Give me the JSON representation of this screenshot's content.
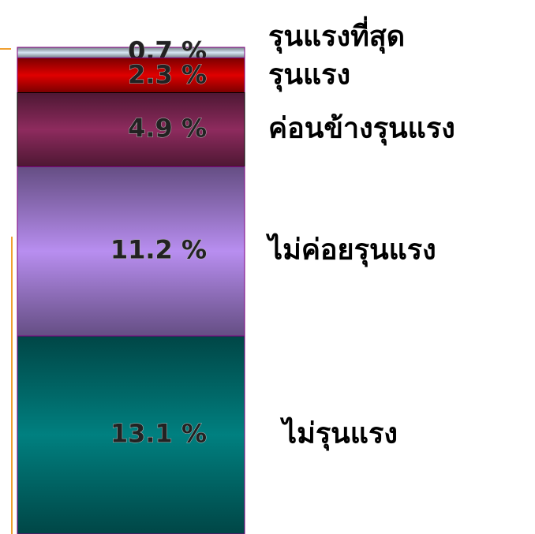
{
  "chart_data": {
    "type": "stacked_bar",
    "categories": [
      "รุนแรงที่สุด",
      "รุนแรง",
      "ค่อนข้างรุนแรง",
      "ไม่ค่อยรุนแรง",
      "ไม่รุนแรง"
    ],
    "values": [
      0.7,
      2.3,
      4.9,
      11.2,
      13.1
    ],
    "value_labels": [
      "0.7 %",
      "2.3 %",
      "4.9 %",
      "11.2 %",
      "13.1 %"
    ],
    "colors": [
      "#d6e6f4",
      "#e00000",
      "#8e2b5e",
      "#b88ef0",
      "#008080"
    ]
  }
}
